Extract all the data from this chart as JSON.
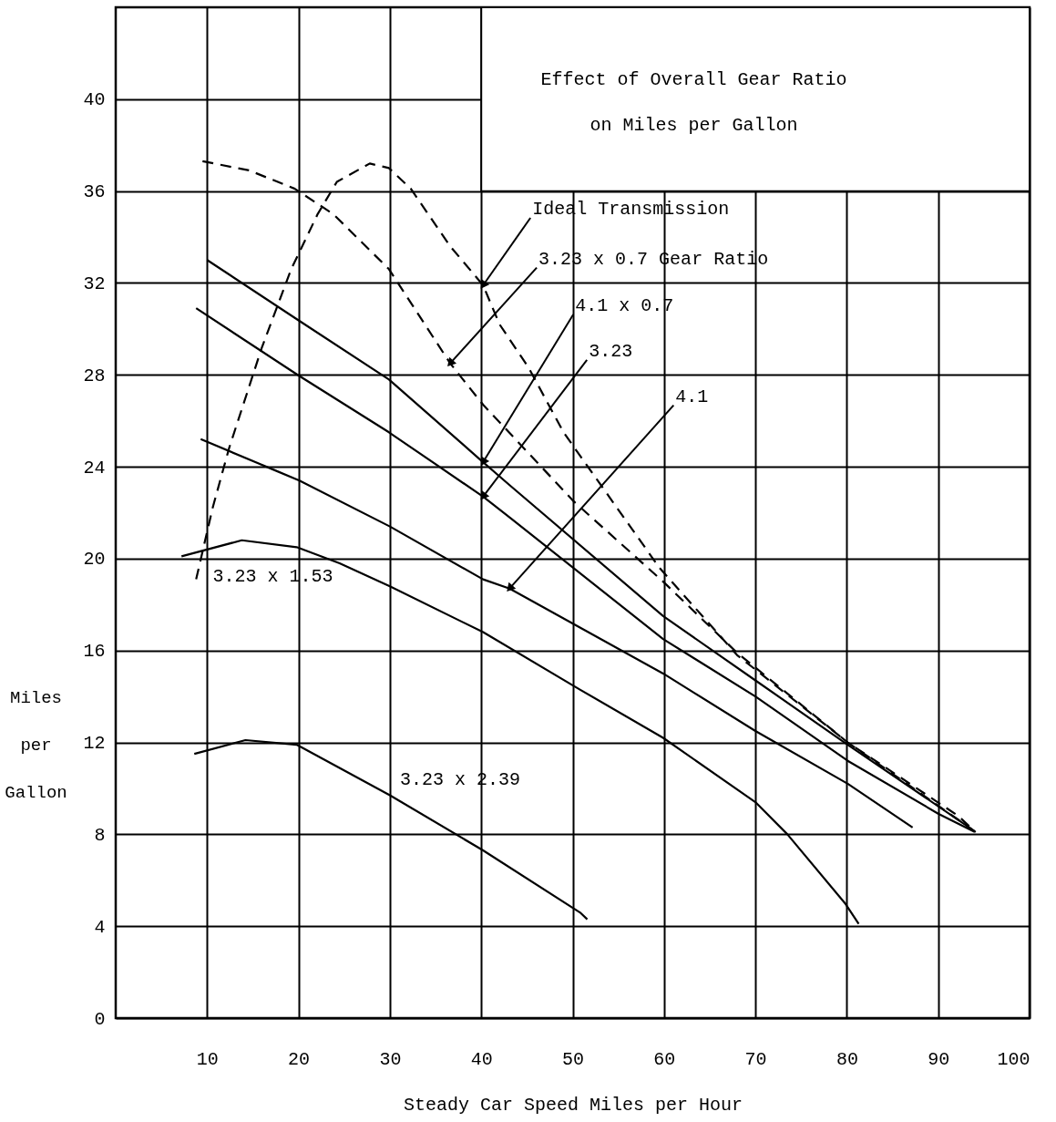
{
  "chart_data": {
    "type": "line",
    "title": "Effect of Overall Gear Ratio",
    "subtitle": "on Miles per Gallon",
    "xlabel": "Steady Car Speed Miles per Hour",
    "ylabel": "Miles per Gallon",
    "xlim": [
      0,
      100
    ],
    "ylim": [
      0,
      44
    ],
    "xticks": [
      10,
      20,
      30,
      40,
      50,
      60,
      70,
      80,
      90,
      100
    ],
    "yticks": [
      0,
      4,
      8,
      12,
      16,
      20,
      24,
      28,
      32,
      36,
      40
    ],
    "grid": true,
    "legend": false,
    "marker": "none",
    "series": [
      {
        "name": "Ideal Transmission",
        "color": "#000000",
        "line_style": "dashed",
        "x": [
          8.8,
          10.6,
          12.4,
          16,
          19.2,
          22.1,
          24.2,
          27.8,
          29.9,
          32.3,
          36.6,
          40.2,
          42,
          45.2,
          49,
          59.5,
          68,
          80.1,
          93.4,
          94.1
        ],
        "values": [
          19.1,
          22.2,
          24.8,
          29.2,
          32.6,
          35,
          36.4,
          37.2,
          37,
          36.1,
          33.6,
          31.9,
          30.2,
          28.3,
          25.5,
          19.6,
          15.8,
          12,
          8.3,
          8.1
        ]
      },
      {
        "name": "3.23 x 0.7 Gear Ratio",
        "color": "#000000",
        "line_style": "dashed",
        "x": [
          9.5,
          14.6,
          19.6,
          23.8,
          29.9,
          36.6,
          40.2,
          50.1,
          59.9,
          68,
          80.1,
          92.2,
          93.8
        ],
        "values": [
          37.3,
          36.9,
          36.1,
          35,
          32.6,
          28.5,
          26.7,
          22.5,
          19,
          15.9,
          12,
          8.8,
          8.2
        ]
      },
      {
        "name": "4.1 x 0.7",
        "color": "#000000",
        "line_style": "solid",
        "x": [
          10,
          19.9,
          29.9,
          40.2,
          43.1,
          59.9,
          70,
          80.1,
          93.4,
          94.1
        ],
        "values": [
          33,
          30.4,
          27.8,
          24.2,
          23.2,
          17.5,
          14.7,
          11.9,
          8.3,
          8.1
        ]
      },
      {
        "name": "3.23",
        "color": "#000000",
        "line_style": "solid",
        "x": [
          8.8,
          19.9,
          29.9,
          40.2,
          43.1,
          59.9,
          70,
          80.1,
          90,
          94
        ],
        "values": [
          30.9,
          28,
          25.5,
          22.7,
          21.8,
          16.5,
          14,
          11.2,
          8.9,
          8.1
        ]
      },
      {
        "name": "4.1",
        "color": "#000000",
        "line_style": "solid",
        "x": [
          9.3,
          17.1,
          20.1,
          30,
          40.2,
          43.1,
          59.9,
          70,
          80.1,
          87.2
        ],
        "values": [
          25.2,
          23.9,
          23.4,
          21.4,
          19.1,
          18.7,
          15,
          12.5,
          10.2,
          8.3
        ]
      },
      {
        "name": "3.23 x 1.53",
        "color": "#000000",
        "line_style": "solid",
        "x": [
          7.2,
          13.8,
          19.8,
          24.5,
          30,
          40.2,
          50.8,
          59.9,
          70,
          73.5,
          79.8,
          81.3
        ],
        "values": [
          20.1,
          20.8,
          20.5,
          19.8,
          18.8,
          16.8,
          14.3,
          12.2,
          9.4,
          8,
          5,
          4.1
        ]
      },
      {
        "name": "3.23 x 2.39",
        "color": "#000000",
        "line_style": "solid",
        "x": [
          8.6,
          14.2,
          19.8,
          30,
          40.2,
          50.8,
          51.6
        ],
        "values": [
          11.5,
          12.1,
          11.9,
          9.7,
          7.3,
          4.6,
          4.3
        ]
      }
    ]
  }
}
